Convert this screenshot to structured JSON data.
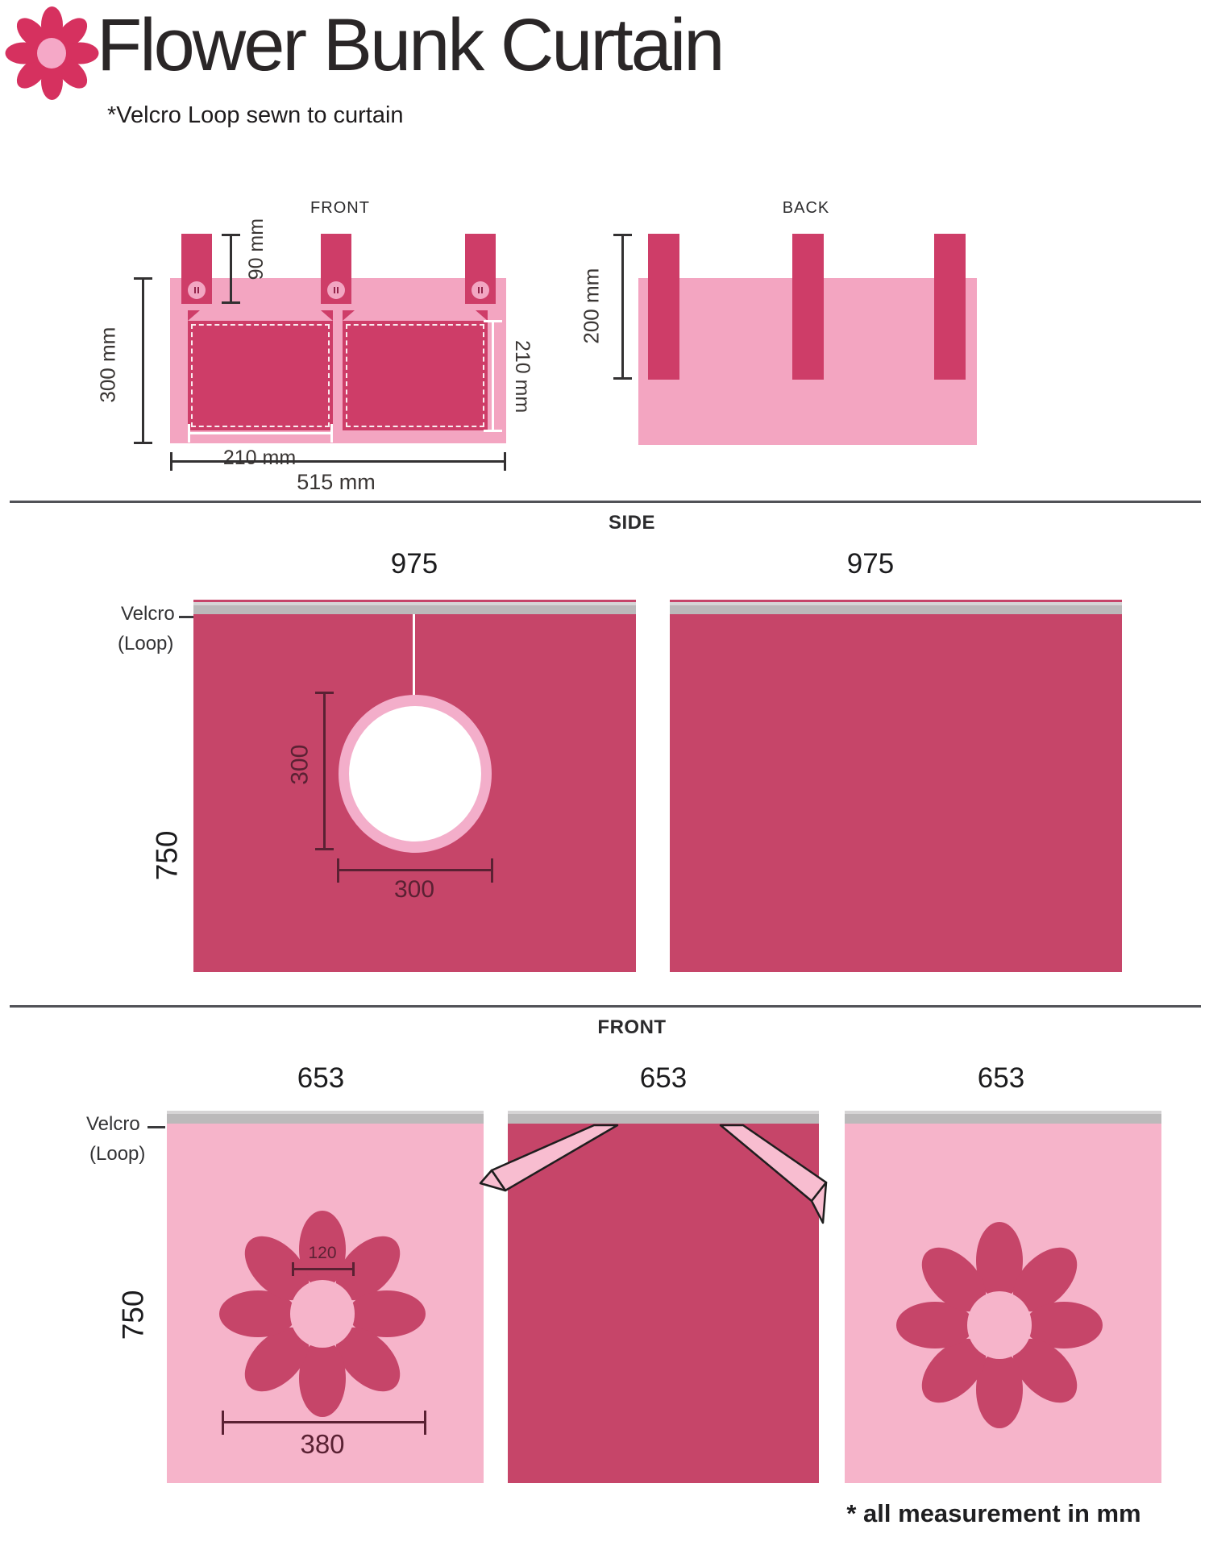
{
  "header": {
    "title": "Flower Bunk Curtain",
    "subtitle": "*Velcro Loop sewn to curtain"
  },
  "colors": {
    "dark_pink": "#C64569",
    "deep_pink": "#CE3D68",
    "light_pink": "#F3A5C1",
    "panel_light_pink": "#F6B4CA",
    "ribbon_pink": "#F8BDD0",
    "ring_pink": "#F3AECA",
    "logo_petal": "#D6315F",
    "logo_center": "#F5A8C7",
    "velcro_gray": "#BBB9BA",
    "divider_gray": "#515257",
    "dim_dark": "#3A3634",
    "dim_maroon": "#5A2133",
    "text_black": "#231F20"
  },
  "top_section": {
    "front_view": {
      "label": "FRONT",
      "strap_height_dim": "90 mm",
      "body_height_dim": "300 mm",
      "pocket_width_dim": "210 mm",
      "body_width_dim": "515 mm",
      "pocket_height_dim": "210 mm"
    },
    "back_view": {
      "label": "BACK",
      "strap_length_dim": "200 mm"
    }
  },
  "side_section": {
    "label": "SIDE",
    "velcro_label": "Velcro",
    "loop_label": "(Loop)",
    "left_panel": {
      "width_dim": "975",
      "height_dim": "750",
      "hole_height_dim": "300",
      "hole_width_dim": "300"
    },
    "right_panel": {
      "width_dim": "975"
    }
  },
  "front_section": {
    "label": "FRONT",
    "velcro_label": "Velcro",
    "loop_label": "(Loop)",
    "left_panel": {
      "width_dim": "653",
      "height_dim": "750",
      "flower_center_dim": "120",
      "flower_width_dim": "380"
    },
    "middle_panel": {
      "width_dim": "653"
    },
    "right_panel": {
      "width_dim": "653"
    }
  },
  "footer": {
    "note": "* all measurement in mm"
  }
}
